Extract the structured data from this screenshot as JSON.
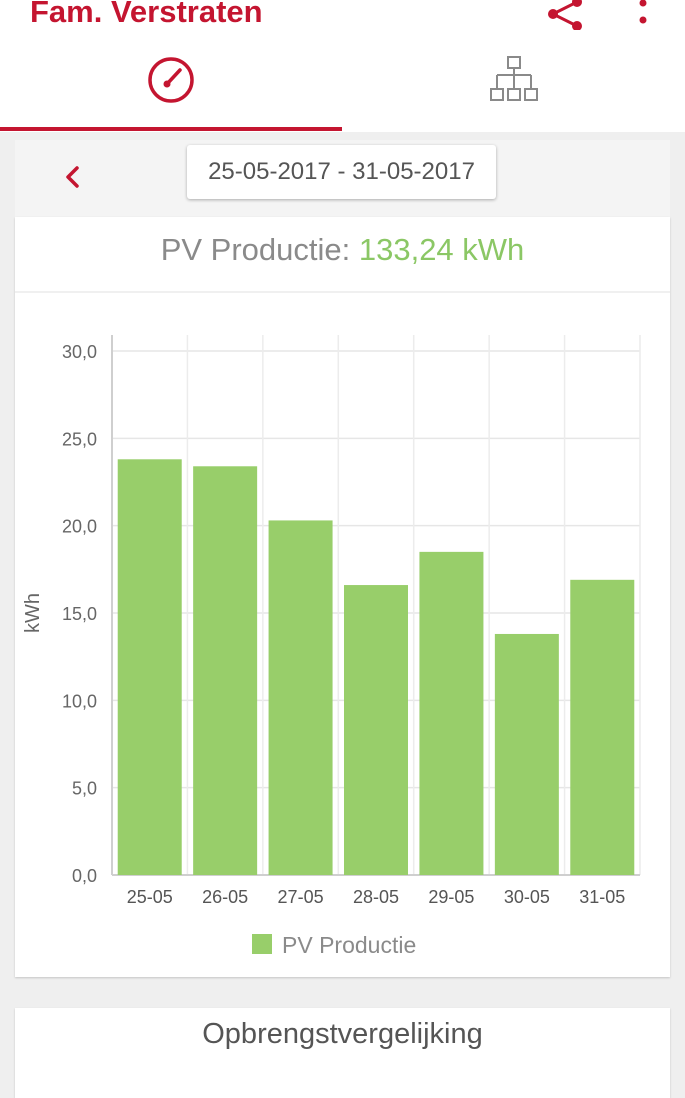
{
  "app": {
    "title": "Fam. Verstraten",
    "share_icon": "share-icon",
    "more_icon": "more-vert-icon",
    "accent": "#c41530"
  },
  "tabs": [
    {
      "icon": "gauge-icon",
      "selected": true
    },
    {
      "icon": "hierarchy-icon",
      "selected": false
    }
  ],
  "period": {
    "range": "25-05-2017 - 31-05-2017",
    "back_icon": "chevron-left-icon"
  },
  "summary": {
    "label": "PV Productie: ",
    "value": "133,24 kWh",
    "value_color": "#8bc765"
  },
  "chart_data": {
    "type": "bar",
    "categories": [
      "25-05",
      "26-05",
      "27-05",
      "28-05",
      "29-05",
      "30-05",
      "31-05"
    ],
    "series": [
      {
        "name": "PV Productie",
        "values": [
          23.8,
          23.4,
          20.3,
          16.6,
          18.5,
          13.8,
          16.9
        ],
        "color": "#98ce6a"
      }
    ],
    "ylabel": "kWh",
    "ylim": [
      0,
      30
    ],
    "yticks": [
      "0,0",
      "5,0",
      "10,0",
      "15,0",
      "20,0",
      "25,0",
      "30,0"
    ],
    "grid": true,
    "legend": "bottom-center"
  },
  "comparison": {
    "title": "Opbrengstvergelijking"
  }
}
